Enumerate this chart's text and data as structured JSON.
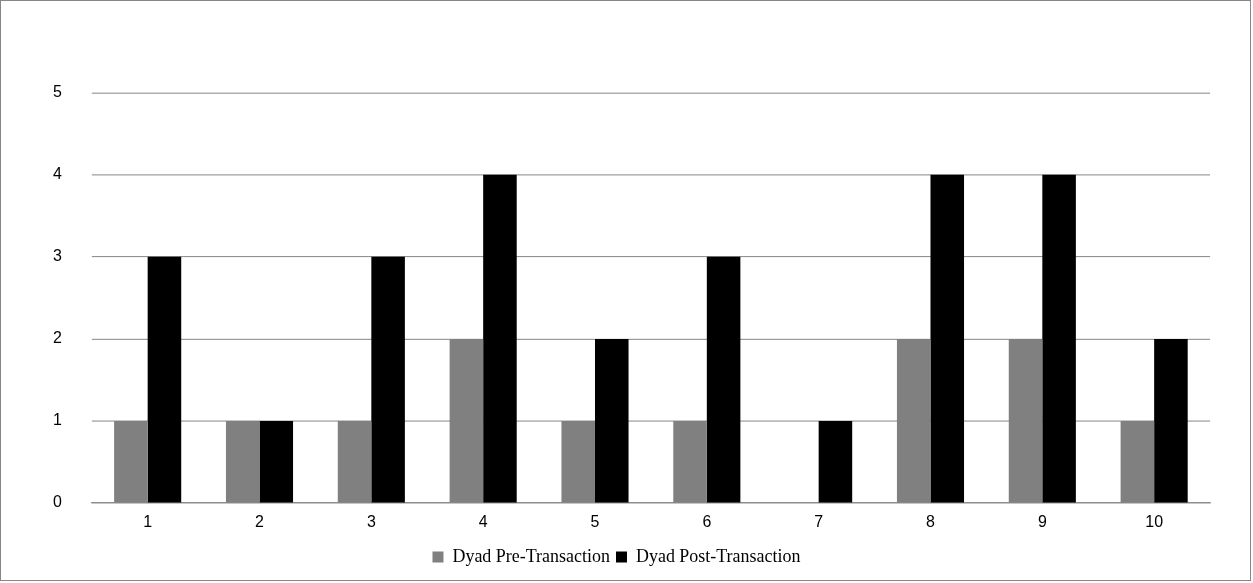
{
  "chart_data": {
    "type": "bar",
    "categories": [
      "1",
      "2",
      "3",
      "4",
      "5",
      "6",
      "7",
      "8",
      "9",
      "10"
    ],
    "series": [
      {
        "name": "Dyad Pre-Transaction",
        "color": "#808080",
        "values": [
          1,
          1,
          1,
          2,
          1,
          1,
          0,
          2,
          2,
          1
        ]
      },
      {
        "name": "Dyad Post-Transaction",
        "color": "#000000",
        "values": [
          3,
          1,
          3,
          4,
          2,
          3,
          1,
          4,
          4,
          2
        ]
      }
    ],
    "ylim": [
      0,
      5
    ],
    "yticks": [
      0,
      1,
      2,
      3,
      4,
      5
    ],
    "grid": "y",
    "legend": "bottom"
  }
}
